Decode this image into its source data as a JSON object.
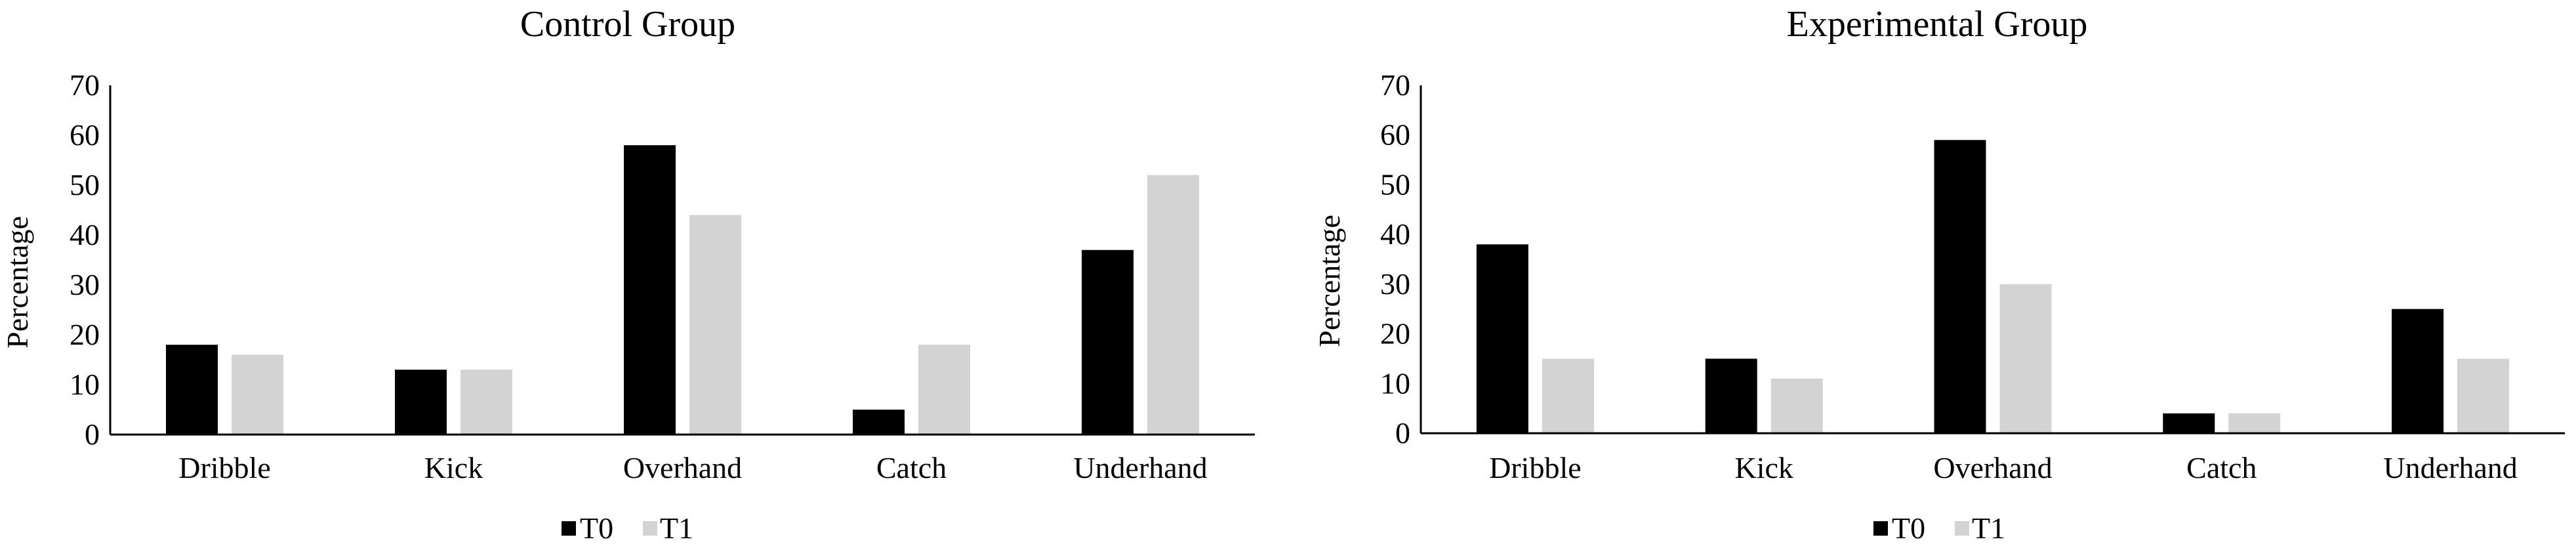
{
  "colors": {
    "T0": "#000000",
    "T1": "#d3d3d3",
    "axis": "#000000",
    "background": "#ffffff"
  },
  "chart_data": [
    {
      "type": "bar",
      "title": "Control Group",
      "xlabel": "",
      "ylabel": "Percentage",
      "categories": [
        "Dribble",
        "Kick",
        "Overhand",
        "Catch",
        "Underhand"
      ],
      "yticks": [
        "0",
        "10",
        "20",
        "30",
        "40",
        "50",
        "60",
        "70"
      ],
      "ylim": [
        0,
        70
      ],
      "grid": false,
      "legend_position": "bottom",
      "series": [
        {
          "name": "T0",
          "values": [
            18,
            13,
            58,
            5,
            37
          ]
        },
        {
          "name": "T1",
          "values": [
            16,
            13,
            44,
            18,
            52
          ]
        }
      ]
    },
    {
      "type": "bar",
      "title": "Experimental Group",
      "xlabel": "",
      "ylabel": "Percentage",
      "categories": [
        "Dribble",
        "Kick",
        "Overhand",
        "Catch",
        "Underhand"
      ],
      "yticks": [
        "0",
        "10",
        "20",
        "30",
        "40",
        "50",
        "60",
        "70"
      ],
      "ylim": [
        0,
        70
      ],
      "grid": false,
      "legend_position": "bottom",
      "series": [
        {
          "name": "T0",
          "values": [
            38,
            15,
            59,
            4,
            25
          ]
        },
        {
          "name": "T1",
          "values": [
            15,
            11,
            30,
            4,
            15
          ]
        }
      ]
    }
  ]
}
